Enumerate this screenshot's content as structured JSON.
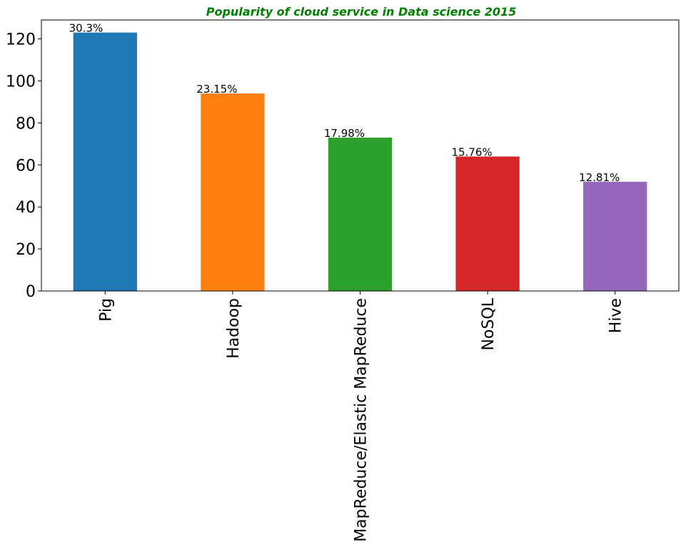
{
  "chart_data": {
    "type": "bar",
    "title": "Popularity of cloud service in Data science 2015",
    "xlabel": "",
    "ylabel": "",
    "categories": [
      "Pig",
      "Hadoop",
      "MapReduce/Elastic MapReduce",
      "NoSQL",
      "Hive"
    ],
    "values": [
      123,
      94,
      73,
      64,
      52
    ],
    "data_labels": [
      "30.3%",
      "23.15%",
      "17.98%",
      "15.76%",
      "12.81%"
    ],
    "colors": [
      "#1f77b4",
      "#ff7f0e",
      "#2ca02c",
      "#d62728",
      "#9467bd"
    ],
    "title_color": "#008000",
    "ylim": [
      0,
      129
    ],
    "yticks": [
      0,
      20,
      40,
      60,
      80,
      100,
      120
    ],
    "ytick_labels": [
      "0",
      "20",
      "40",
      "60",
      "80",
      "100",
      "120"
    ],
    "grid": false,
    "legend": "none"
  }
}
